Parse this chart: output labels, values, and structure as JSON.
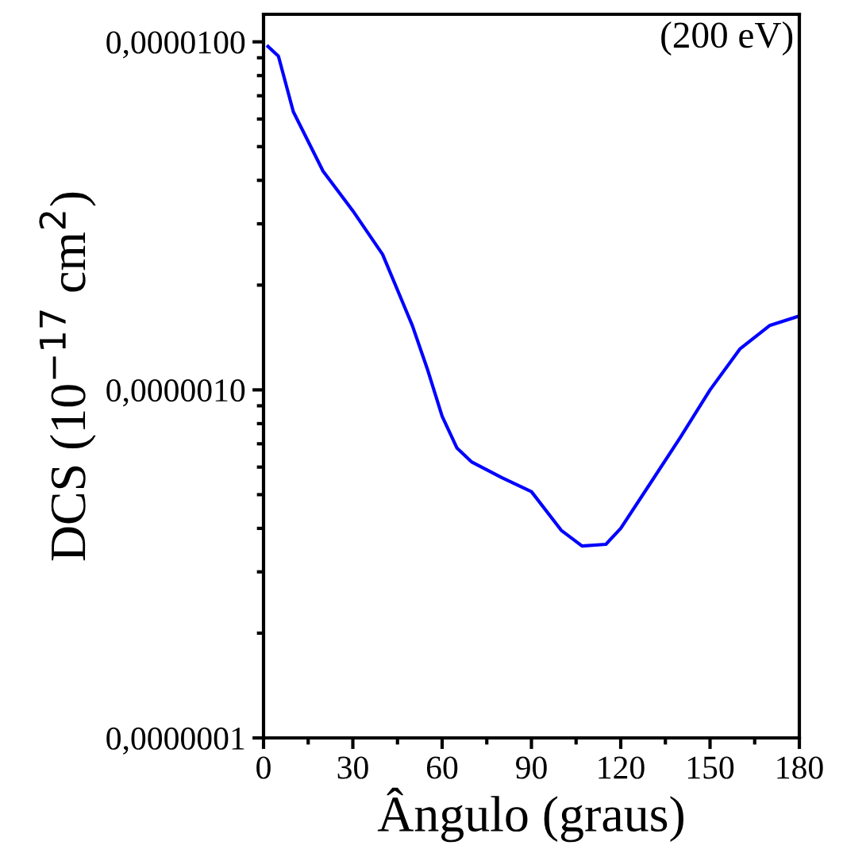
{
  "chart_data": {
    "type": "line",
    "xlabel": "Ângulo (graus)",
    "ylabel": "DCS (10$^{−17}$ cm$^{2}$)",
    "annotations": [
      "(200 eV)"
    ],
    "x": [
      1.5,
      5,
      10,
      20,
      30,
      40,
      50,
      55,
      60,
      65,
      70,
      80,
      90,
      100,
      107,
      115,
      120,
      130,
      140,
      150,
      160,
      170,
      180
    ],
    "series": [
      {
        "color": "#0000ff",
        "values": [
          9.7e-06,
          9.1e-06,
          6.3e-06,
          4.25e-06,
          3.27e-06,
          2.45e-06,
          1.53e-06,
          1.15e-06,
          8.4e-07,
          6.8e-07,
          6.2e-07,
          5.6e-07,
          5.1e-07,
          3.95e-07,
          3.56e-07,
          3.6e-07,
          4e-07,
          5.4e-07,
          7.3e-07,
          1e-06,
          1.31e-06,
          1.53e-06,
          1.63e-06
        ]
      }
    ],
    "log": "y",
    "xlim": [
      0,
      180
    ],
    "xticks": [
      0,
      30,
      60,
      90,
      120,
      150,
      180
    ],
    "ylim": [
      1e-07,
      1.2e-05
    ],
    "yticks": [
      {
        "value": 1e-07,
        "label": "0,0000001"
      },
      {
        "value": 1e-06,
        "label": "0,0000010"
      },
      {
        "value": 1e-05,
        "label": "0,0000100"
      }
    ],
    "grid": false,
    "legend": false,
    "marker": "none",
    "line_style": "solid"
  }
}
